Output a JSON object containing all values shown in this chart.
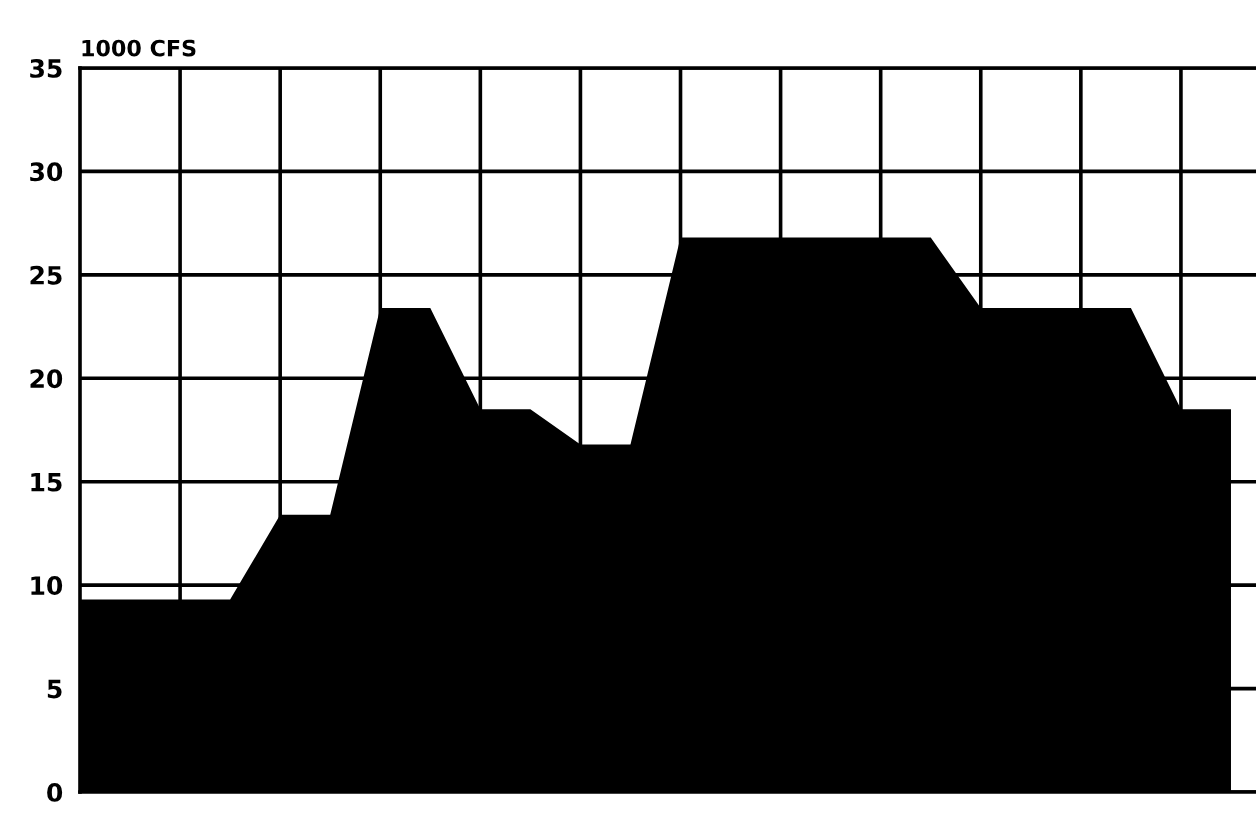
{
  "chart_data": {
    "type": "area",
    "ylabel": "1000 CFS",
    "categories": [
      null,
      null,
      null,
      null,
      null,
      null,
      null,
      null,
      null,
      null,
      null,
      null,
      null,
      null,
      null,
      null,
      null,
      null,
      null,
      null,
      null,
      null,
      null,
      null
    ],
    "series": [
      {
        "color": "#000000",
        "values": [
          9.3,
          9.3,
          9.3,
          9.3,
          13.4,
          13.4,
          23.4,
          23.4,
          18.5,
          18.5,
          16.8,
          16.8,
          26.8,
          26.8,
          26.8,
          26.8,
          26.8,
          26.8,
          23.4,
          23.4,
          23.4,
          23.4,
          18.5,
          18.5
        ]
      }
    ],
    "ylim": [
      0,
      35
    ],
    "yticks": [
      0,
      5,
      10,
      15,
      20,
      25,
      30,
      35
    ],
    "grid": true,
    "tick_labels": "y"
  }
}
